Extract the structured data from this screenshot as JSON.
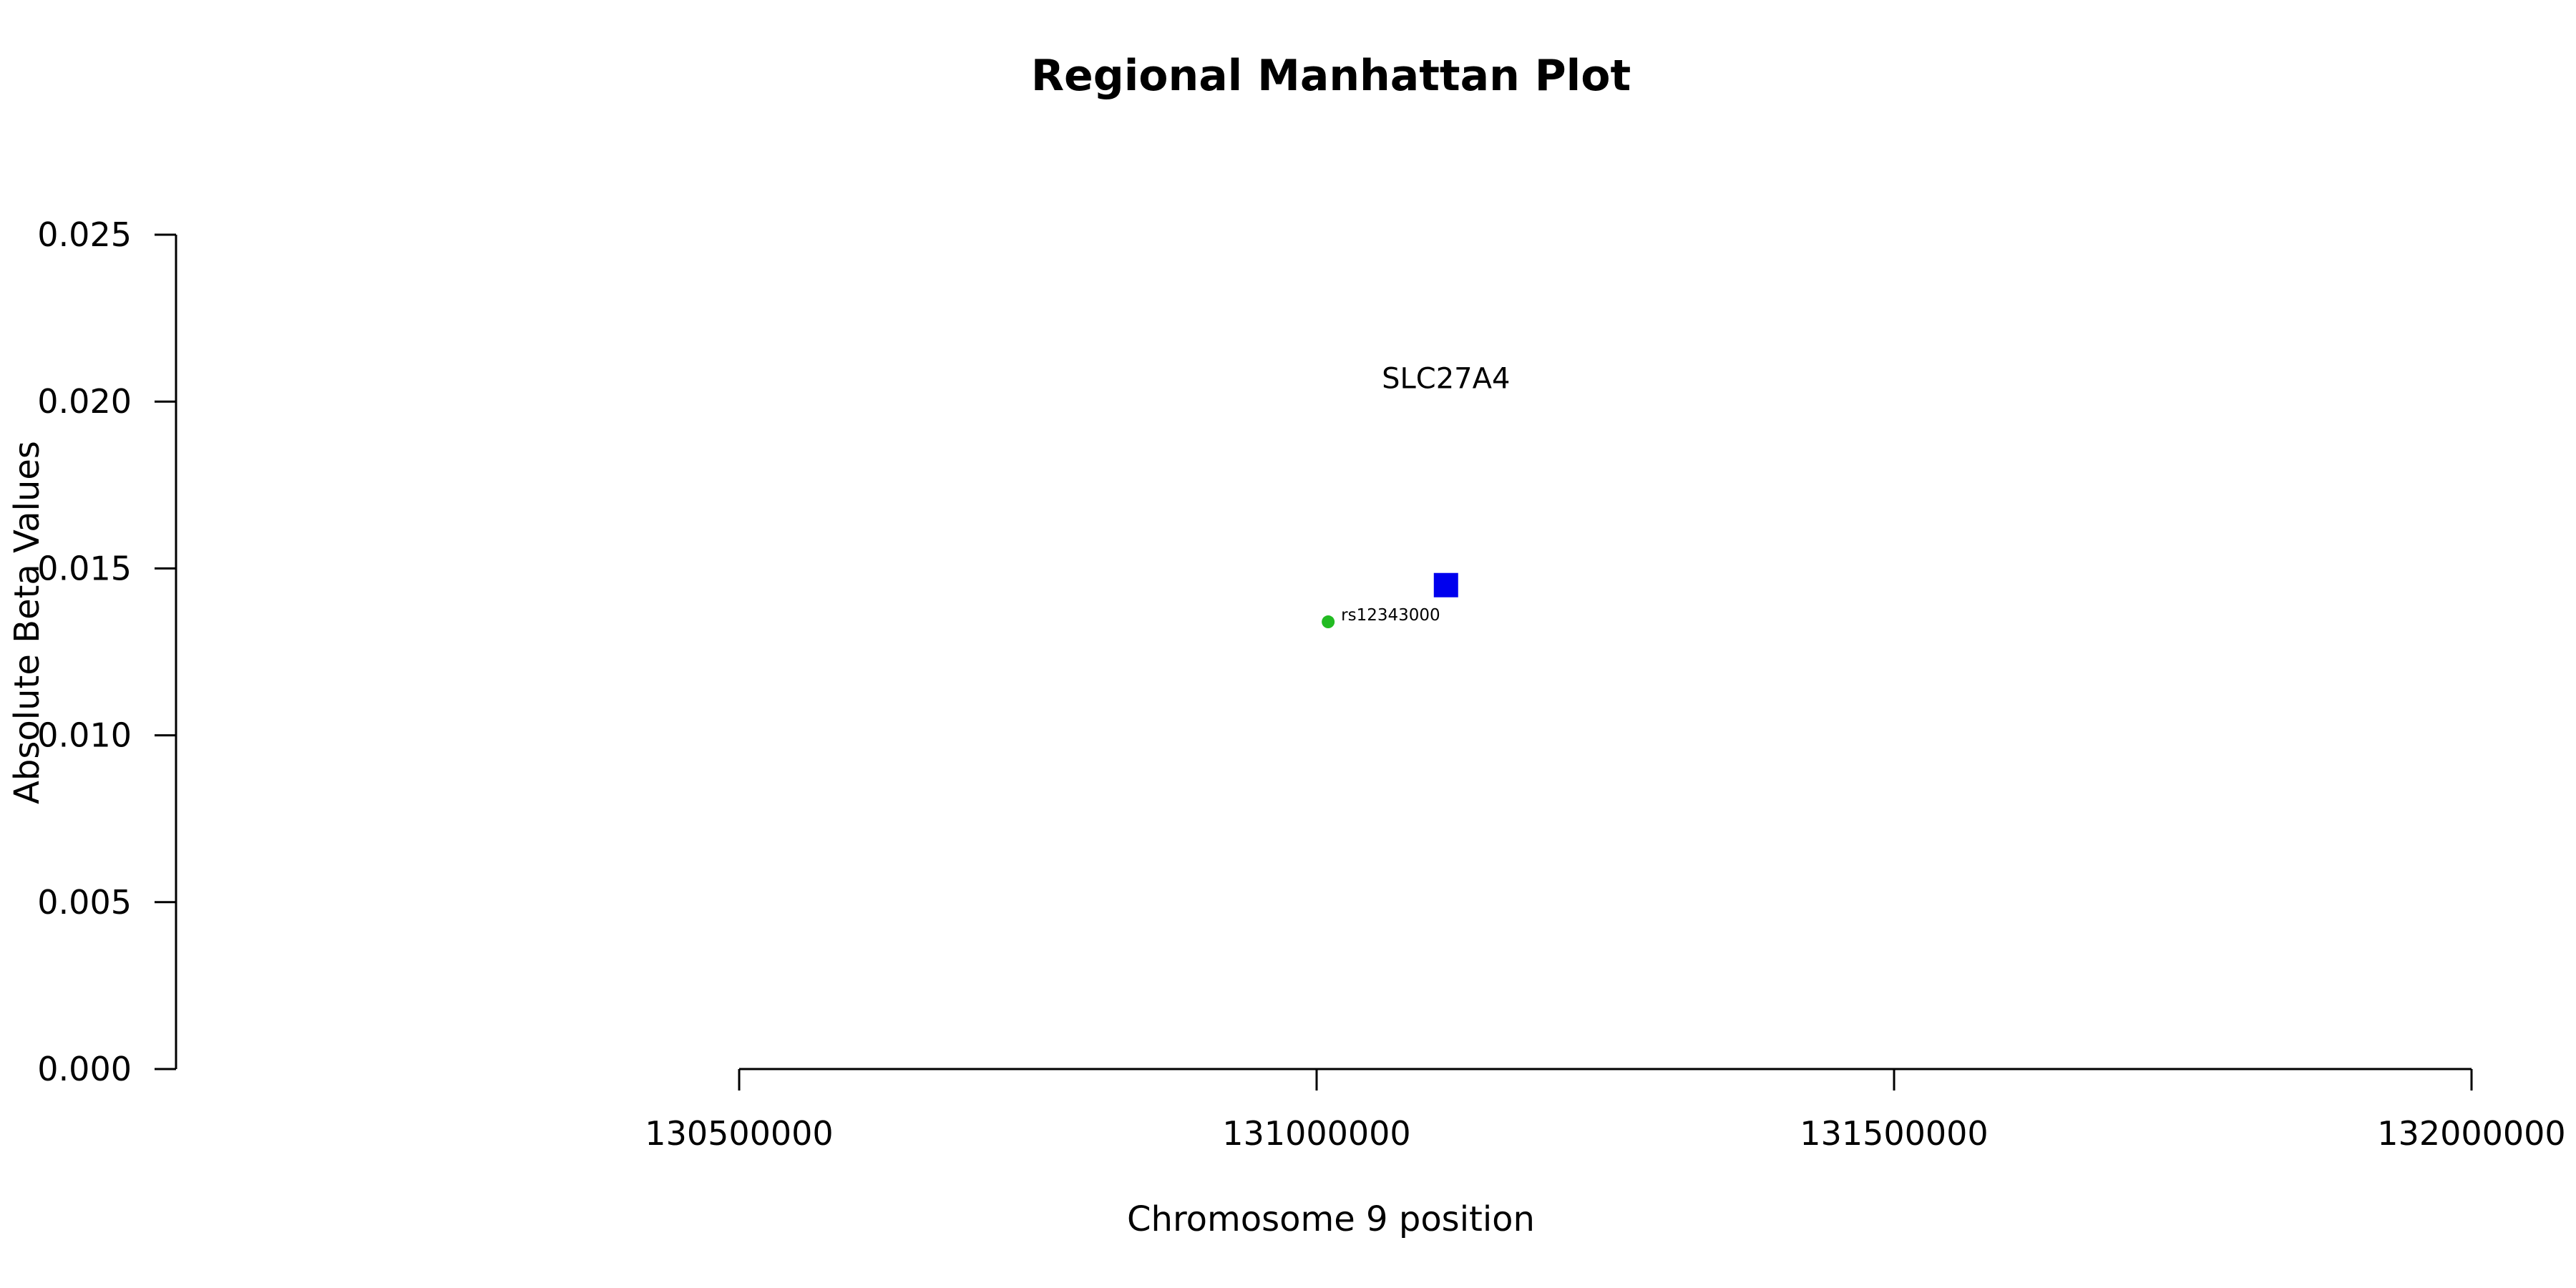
{
  "chart_data": {
    "type": "scatter",
    "title": "Regional Manhattan Plot",
    "xlabel": "Chromosome 9 position",
    "ylabel": "Absolute Beta Values",
    "xlim": [
      130500000,
      132000000
    ],
    "ylim": [
      0,
      0.025
    ],
    "x_ticks": [
      "130500000",
      "131000000",
      "131500000",
      "132000000"
    ],
    "y_ticks": [
      "0.000",
      "0.005",
      "0.010",
      "0.015",
      "0.020",
      "0.025"
    ],
    "grid": false,
    "series": [
      {
        "marker": "circle",
        "color": "#22bb22",
        "points": [
          {
            "x": 131010000,
            "y": 0.0134,
            "label": "rs12343000"
          }
        ]
      },
      {
        "marker": "square",
        "color": "#0000ee",
        "points": [
          {
            "x": 131112000,
            "y": 0.0145
          }
        ]
      }
    ],
    "annotations": [
      {
        "text": "SLC27A4",
        "x": 131112000,
        "y": 0.0207
      }
    ]
  }
}
